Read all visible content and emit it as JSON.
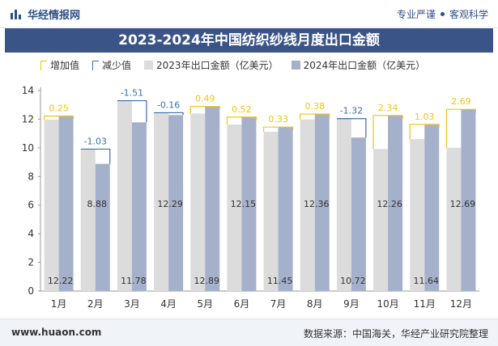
{
  "header": {
    "brand": "华经情报网",
    "tagline_1": "专业严谨",
    "tagline_2": "客观科学"
  },
  "colors": {
    "bar_2023": "#dcdcdc",
    "bar_2024": "#a5b0cb",
    "increase": "#f2c211",
    "decrease": "#3a6fa8",
    "title_bg": "#3b5487"
  },
  "chart_data": {
    "type": "bar",
    "title": "2023-2024年中国纺织纱线月度出口金额",
    "categories": [
      "1月",
      "2月",
      "3月",
      "4月",
      "5月",
      "6月",
      "7月",
      "8月",
      "9月",
      "10月",
      "11月",
      "12月"
    ],
    "series": [
      {
        "name": "2023年出口金额（亿美元）",
        "values": [
          11.97,
          9.91,
          13.29,
          12.45,
          12.4,
          11.63,
          11.12,
          11.98,
          12.04,
          9.92,
          10.61,
          10.0
        ]
      },
      {
        "name": "2024年出口金额（亿美元）",
        "values": [
          12.22,
          8.88,
          11.78,
          12.29,
          12.89,
          12.15,
          11.45,
          12.36,
          10.72,
          12.26,
          11.64,
          12.69
        ]
      }
    ],
    "change": {
      "values": [
        0.25,
        -1.03,
        -1.51,
        -0.16,
        0.49,
        0.52,
        0.33,
        0.38,
        -1.32,
        2.34,
        1.03,
        2.69
      ],
      "labels": [
        "0.25",
        "-1.03",
        "-1.51",
        "-0.16",
        "0.49",
        "0.52",
        "0.33",
        "0.38",
        "-1.32",
        "2.34",
        "1.03",
        "2.69"
      ]
    },
    "legend": [
      "增加值",
      "减少值",
      "2023年出口金额（亿美元）",
      "2024年出口金额（亿美元）"
    ],
    "value_labels_2024": [
      "12.22",
      "8.88",
      "11.78",
      "12.29",
      "12.89",
      "12.15",
      "11.45",
      "12.36",
      "10.72",
      "12.26",
      "11.64",
      "12.69"
    ],
    "ylim": [
      0,
      14
    ],
    "yticks": [
      "0",
      "2",
      "4",
      "6",
      "8",
      "10",
      "12",
      "14"
    ],
    "grid": false,
    "legend_position": "top"
  },
  "footer": {
    "website": "www.huaon.com",
    "source": "数据来源：中国海关，华经产业研究院整理"
  }
}
